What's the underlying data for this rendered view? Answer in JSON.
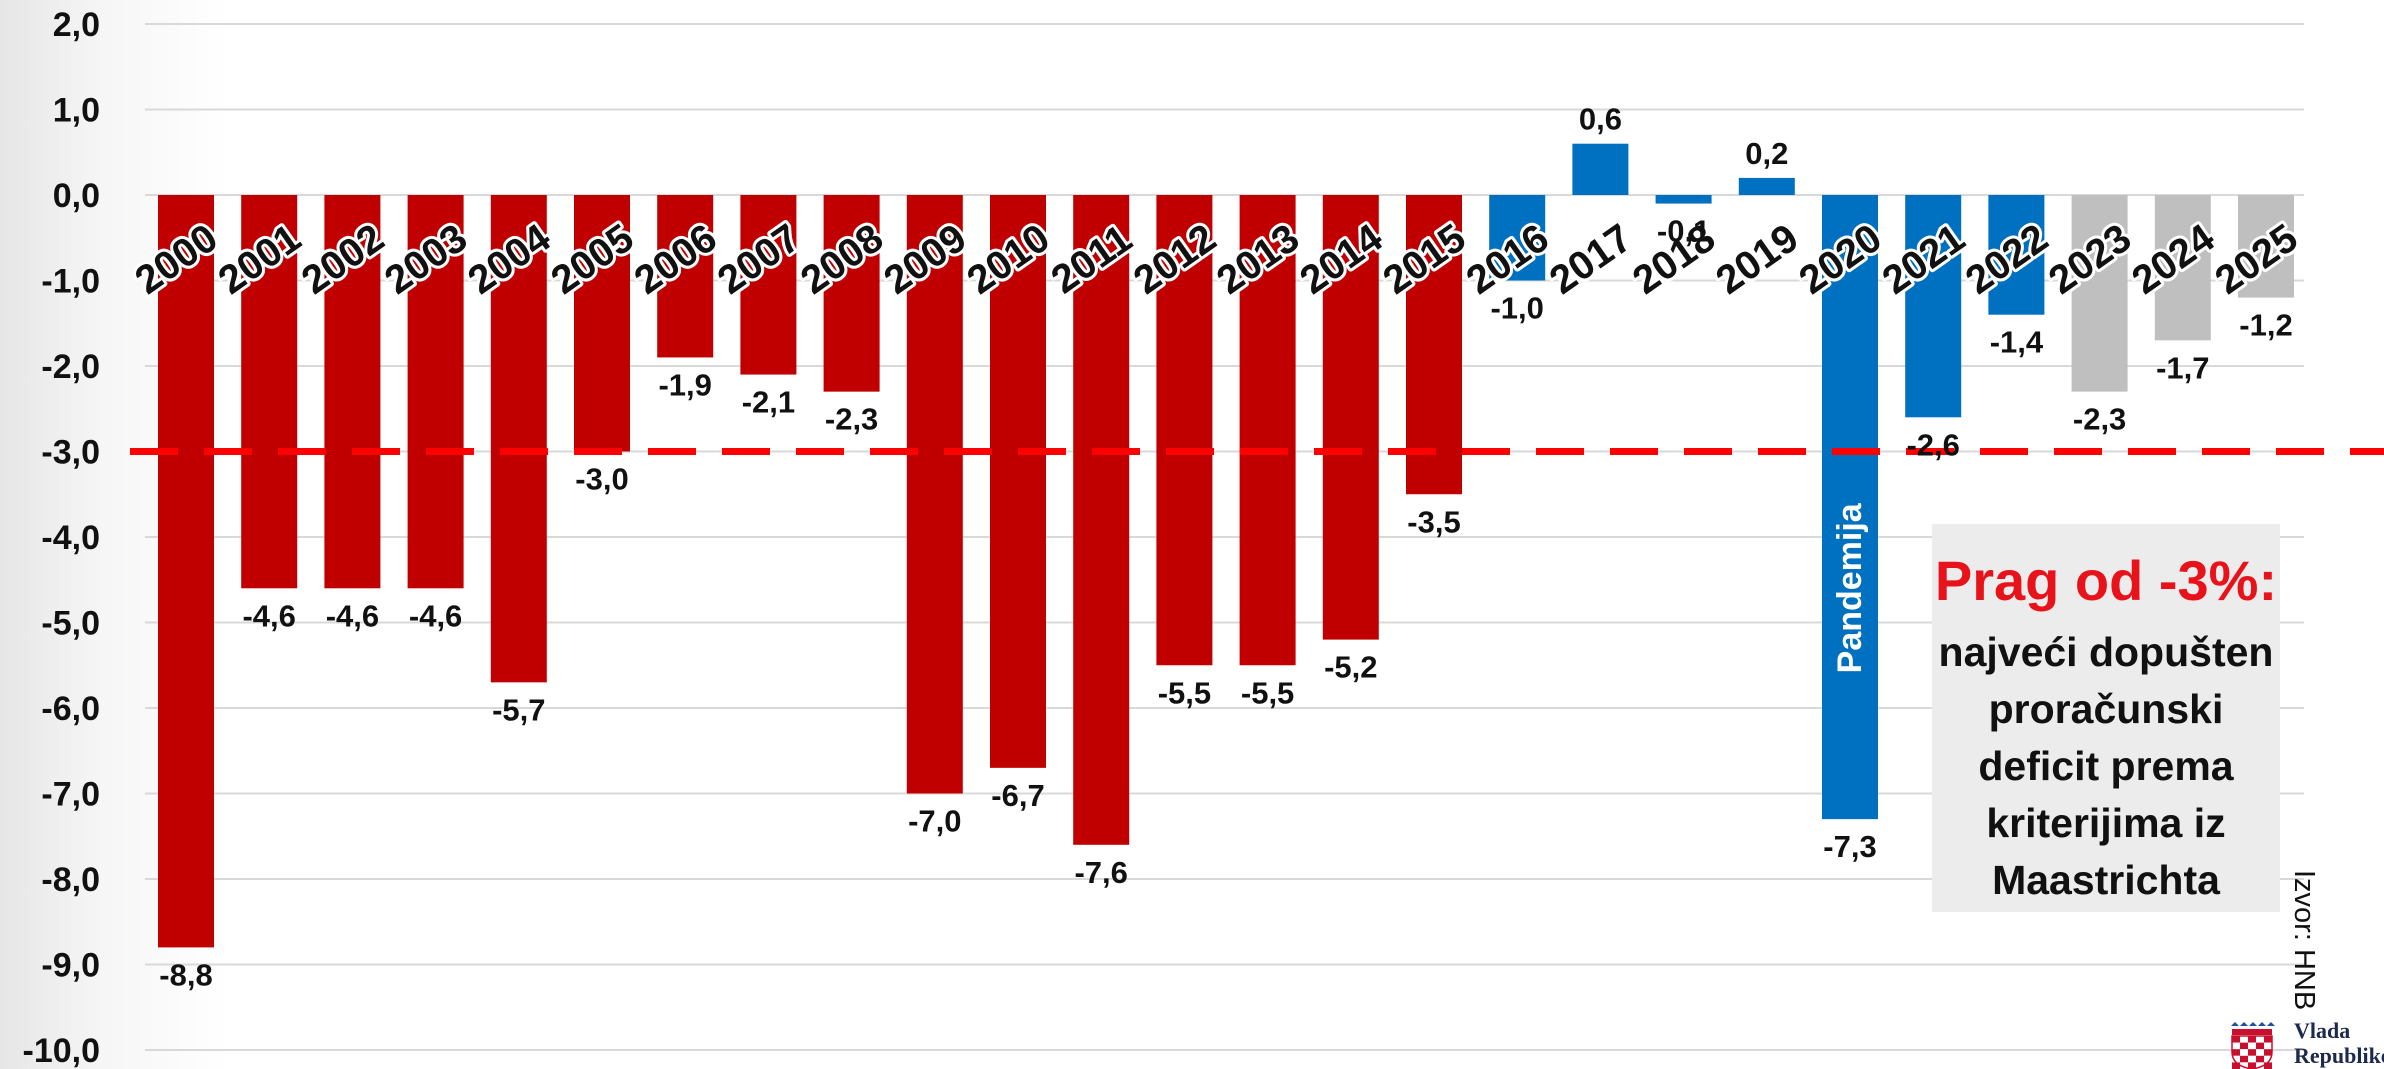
{
  "chart_data": {
    "type": "bar",
    "categories": [
      "2000",
      "2001",
      "2002",
      "2003",
      "2004",
      "2005",
      "2006",
      "2007",
      "2008",
      "2009",
      "2010",
      "2011",
      "2012",
      "2013",
      "2014",
      "2015",
      "2016",
      "2017",
      "2018",
      "2019",
      "2020",
      "2021",
      "2022",
      "2023",
      "2024",
      "2025"
    ],
    "values": [
      -8.8,
      -4.6,
      -4.6,
      -4.6,
      -5.7,
      -3.0,
      -1.9,
      -2.1,
      -2.3,
      -7.0,
      -6.7,
      -7.6,
      -5.5,
      -5.5,
      -5.2,
      -3.5,
      -1.0,
      0.6,
      -0.1,
      0.2,
      -7.3,
      -2.6,
      -1.4,
      -2.3,
      -1.7,
      -1.2
    ],
    "value_labels": [
      "-8,8",
      "-4,6",
      "-4,6",
      "-4,6",
      "-5,7",
      "-3,0",
      "-1,9",
      "-2,1",
      "-2,3",
      "-7,0",
      "-6,7",
      "-7,6",
      "-5,5",
      "-5,5",
      "-5,2",
      "-3,5",
      "-1,0",
      "0,6",
      "-0,1",
      "0,2",
      "-7,3",
      "-2,6",
      "-1,4",
      "-2,3",
      "-1,7",
      "-1,2"
    ],
    "y_tick_labels": [
      "2,0",
      "1,0",
      "0,0",
      "-1,0",
      "-2,0",
      "-3,0",
      "-4,0",
      "-5,0",
      "-6,0",
      "-7,0",
      "-8,0",
      "-9,0",
      "-10,0"
    ],
    "y_tick_values": [
      2,
      1,
      0,
      -1,
      -2,
      -3,
      -4,
      -5,
      -6,
      -7,
      -8,
      -9,
      -10
    ],
    "ylim": [
      -10,
      2
    ],
    "grid": true,
    "threshold": -3.0,
    "bar_groups": {
      "red": [
        0,
        15
      ],
      "blue": [
        16,
        22
      ],
      "gray": [
        23,
        25
      ]
    },
    "colors": {
      "red": "#c00000",
      "blue": "#0070c0",
      "gray": "#bfbfbf",
      "threshold_line": "#ff0000",
      "grid": "#d9d9d9"
    },
    "bar_annotation": {
      "index": 20,
      "text": "Pandemija"
    }
  },
  "note": {
    "title": "Prag od -3%:",
    "lines": [
      "najveći dopušten",
      "proračunski",
      "deficit prema",
      "kriterijima iz",
      "Maastrichta"
    ]
  },
  "source": "Izvor: HNB",
  "logo": {
    "line1": "Vlada",
    "line2": "Republike"
  }
}
